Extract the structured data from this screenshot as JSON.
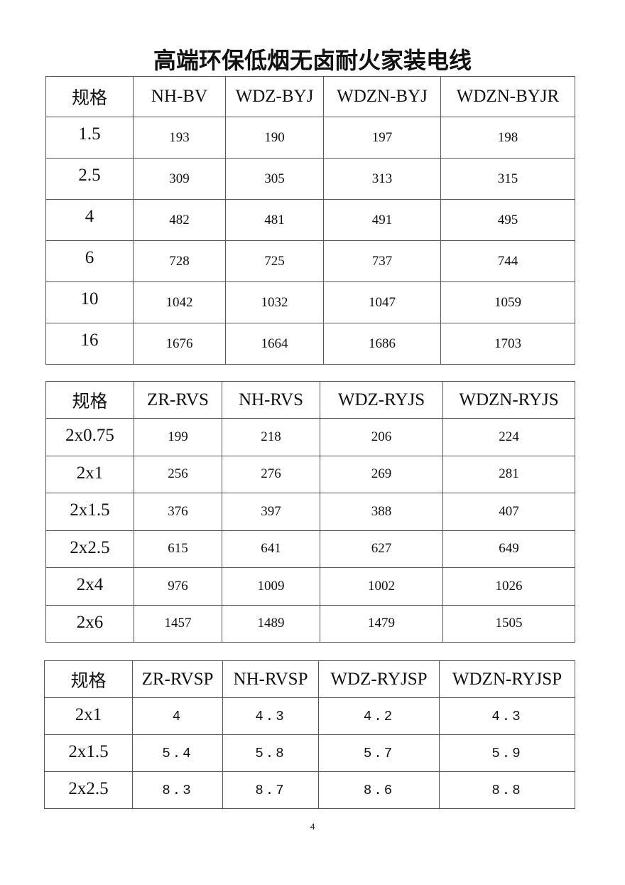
{
  "title": "高端环保低烟无卤耐火家装电线",
  "tables": [
    {
      "headers": [
        "规格",
        "NH-BV",
        "WDZ-BYJ",
        "WDZN-BYJ",
        "WDZN-BYJR"
      ],
      "rows": [
        [
          "1.5",
          "193",
          "190",
          "197",
          "198"
        ],
        [
          "2.5",
          "309",
          "305",
          "313",
          "315"
        ],
        [
          "4",
          "482",
          "481",
          "491",
          "495"
        ],
        [
          "6",
          "728",
          "725",
          "737",
          "744"
        ],
        [
          "10",
          "1042",
          "1032",
          "1047",
          "1059"
        ],
        [
          "16",
          "1676",
          "1664",
          "1686",
          "1703"
        ]
      ]
    },
    {
      "headers": [
        "规格",
        "ZR-RVS",
        "NH-RVS",
        "WDZ-RYJS",
        "WDZN-RYJS"
      ],
      "rows": [
        [
          "2x0.75",
          "199",
          "218",
          "206",
          "224"
        ],
        [
          "2x1",
          "256",
          "276",
          "269",
          "281"
        ],
        [
          "2x1.5",
          "376",
          "397",
          "388",
          "407"
        ],
        [
          "2x2.5",
          "615",
          "641",
          "627",
          "649"
        ],
        [
          "2x4",
          "976",
          "1009",
          "1002",
          "1026"
        ],
        [
          "2x6",
          "1457",
          "1489",
          "1479",
          "1505"
        ]
      ]
    },
    {
      "headers": [
        "规格",
        "ZR-RVSP",
        "NH-RVSP",
        "WDZ-RYJSP",
        "WDZN-RYJSP"
      ],
      "rows": [
        [
          "2x1",
          "4",
          "4.3",
          "4.2",
          "4.3"
        ],
        [
          "2x1.5",
          "5.4",
          "5.8",
          "5.7",
          "5.9"
        ],
        [
          "2x2.5",
          "8.3",
          "8.7",
          "8.6",
          "8.8"
        ]
      ]
    }
  ],
  "page_number": "4"
}
